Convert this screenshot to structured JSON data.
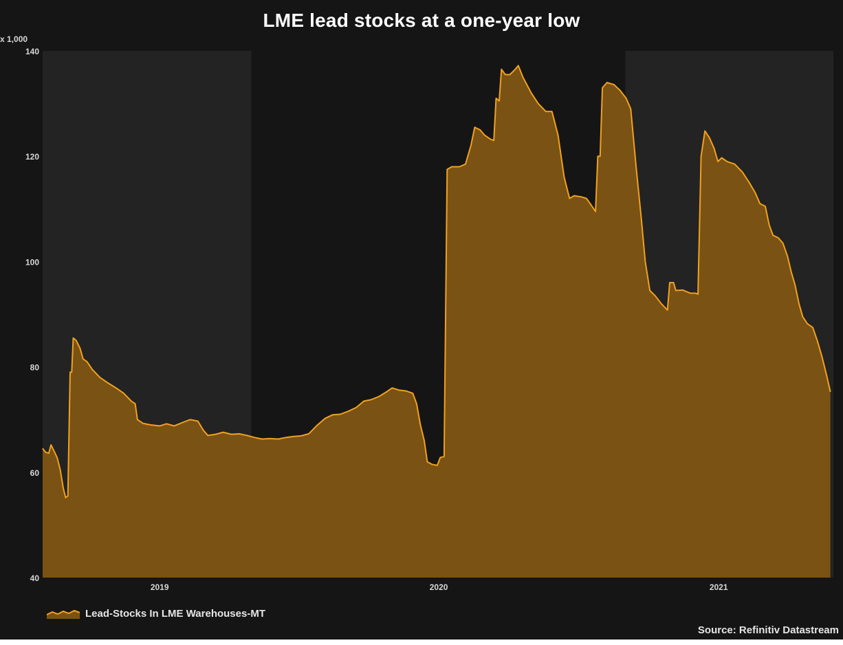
{
  "title": "LME lead stocks at a one-year low",
  "unit_label": "x 1,000",
  "source": "Source: Refinitiv Datastream",
  "colors": {
    "background": "#151515",
    "band": "#232323",
    "area_fill": "#7a5214",
    "line": "#f0a21f",
    "text": "#e6e6e6"
  },
  "chart_data": {
    "type": "area",
    "title": "LME lead stocks at a one-year low",
    "ylim": [
      40,
      140
    ],
    "xlim": [
      "2018-08-01",
      "2021-05-31"
    ],
    "y_ticks": [
      40,
      60,
      80,
      100,
      120,
      140
    ],
    "y_tick_labels": [
      "40",
      "60",
      "80",
      "100",
      "120",
      "140"
    ],
    "x_ticks": [
      "2019-01-01",
      "2020-01-01",
      "2021-01-01"
    ],
    "x_tick_labels": [
      "2019",
      "2020",
      "2021"
    ],
    "shaded_bands": [
      [
        "2018-08-01",
        "2019-05-01"
      ],
      [
        "2020-09-01",
        "2021-05-31"
      ]
    ],
    "grid": false,
    "legend": "bottom-left",
    "series": [
      {
        "name": "Lead-Stocks In LME Warehouses-MT",
        "points": [
          [
            "2018-08-01",
            64.5
          ],
          [
            "2018-08-05",
            63.8
          ],
          [
            "2018-08-09",
            63.6
          ],
          [
            "2018-08-12",
            65.2
          ],
          [
            "2018-08-16",
            64.0
          ],
          [
            "2018-08-20",
            62.8
          ],
          [
            "2018-08-24",
            60.5
          ],
          [
            "2018-08-28",
            57.0
          ],
          [
            "2018-08-31",
            55.2
          ],
          [
            "2018-09-03",
            55.5
          ],
          [
            "2018-09-06",
            79.0
          ],
          [
            "2018-09-08",
            79.0
          ],
          [
            "2018-09-10",
            85.5
          ],
          [
            "2018-09-14",
            85.0
          ],
          [
            "2018-09-19",
            83.5
          ],
          [
            "2018-09-23",
            81.5
          ],
          [
            "2018-09-28",
            81.0
          ],
          [
            "2018-10-05",
            79.5
          ],
          [
            "2018-10-15",
            78.0
          ],
          [
            "2018-10-25",
            77.0
          ],
          [
            "2018-11-05",
            76.0
          ],
          [
            "2018-11-15",
            75.0
          ],
          [
            "2018-11-25",
            73.5
          ],
          [
            "2018-11-30",
            73.0
          ],
          [
            "2018-12-03",
            70.0
          ],
          [
            "2018-12-10",
            69.3
          ],
          [
            "2018-12-20",
            69.0
          ],
          [
            "2019-01-01",
            68.8
          ],
          [
            "2019-01-10",
            69.2
          ],
          [
            "2019-01-20",
            68.8
          ],
          [
            "2019-02-01",
            69.5
          ],
          [
            "2019-02-10",
            70.0
          ],
          [
            "2019-02-20",
            69.7
          ],
          [
            "2019-02-27",
            68.0
          ],
          [
            "2019-03-05",
            67.0
          ],
          [
            "2019-03-15",
            67.2
          ],
          [
            "2019-03-25",
            67.6
          ],
          [
            "2019-04-05",
            67.2
          ],
          [
            "2019-04-15",
            67.3
          ],
          [
            "2019-04-25",
            67.0
          ],
          [
            "2019-05-05",
            66.6
          ],
          [
            "2019-05-15",
            66.3
          ],
          [
            "2019-05-25",
            66.4
          ],
          [
            "2019-06-05",
            66.3
          ],
          [
            "2019-06-15",
            66.6
          ],
          [
            "2019-06-25",
            66.8
          ],
          [
            "2019-07-05",
            66.9
          ],
          [
            "2019-07-15",
            67.3
          ],
          [
            "2019-07-25",
            68.8
          ],
          [
            "2019-08-05",
            70.2
          ],
          [
            "2019-08-15",
            70.9
          ],
          [
            "2019-08-25",
            71.0
          ],
          [
            "2019-09-05",
            71.6
          ],
          [
            "2019-09-15",
            72.3
          ],
          [
            "2019-09-25",
            73.5
          ],
          [
            "2019-10-05",
            73.8
          ],
          [
            "2019-10-15",
            74.4
          ],
          [
            "2019-10-25",
            75.3
          ],
          [
            "2019-11-01",
            76.0
          ],
          [
            "2019-11-10",
            75.6
          ],
          [
            "2019-11-20",
            75.4
          ],
          [
            "2019-11-28",
            75.0
          ],
          [
            "2019-12-03",
            73.0
          ],
          [
            "2019-12-08",
            69.0
          ],
          [
            "2019-12-13",
            66.0
          ],
          [
            "2019-12-17",
            62.0
          ],
          [
            "2019-12-23",
            61.5
          ],
          [
            "2019-12-30",
            61.3
          ],
          [
            "2020-01-03",
            62.8
          ],
          [
            "2020-01-08",
            63.0
          ],
          [
            "2020-01-10",
            90.0
          ],
          [
            "2020-01-12",
            117.5
          ],
          [
            "2020-01-18",
            118.0
          ],
          [
            "2020-01-28",
            118.0
          ],
          [
            "2020-02-05",
            118.5
          ],
          [
            "2020-02-12",
            122.0
          ],
          [
            "2020-02-17",
            125.5
          ],
          [
            "2020-02-24",
            125.0
          ],
          [
            "2020-03-01",
            124.0
          ],
          [
            "2020-03-09",
            123.2
          ],
          [
            "2020-03-13",
            123.0
          ],
          [
            "2020-03-16",
            131.0
          ],
          [
            "2020-03-20",
            130.5
          ],
          [
            "2020-03-23",
            136.5
          ],
          [
            "2020-03-28",
            135.5
          ],
          [
            "2020-04-03",
            135.5
          ],
          [
            "2020-04-10",
            136.5
          ],
          [
            "2020-04-14",
            137.2
          ],
          [
            "2020-04-20",
            135.0
          ],
          [
            "2020-05-01",
            132.0
          ],
          [
            "2020-05-10",
            130.0
          ],
          [
            "2020-05-20",
            128.5
          ],
          [
            "2020-05-28",
            128.5
          ],
          [
            "2020-06-05",
            124.0
          ],
          [
            "2020-06-13",
            116.0
          ],
          [
            "2020-06-20",
            112.0
          ],
          [
            "2020-06-26",
            112.5
          ],
          [
            "2020-07-05",
            112.3
          ],
          [
            "2020-07-12",
            112.0
          ],
          [
            "2020-07-17",
            111.0
          ],
          [
            "2020-07-24",
            109.5
          ],
          [
            "2020-07-27",
            120.0
          ],
          [
            "2020-07-30",
            120.0
          ],
          [
            "2020-08-02",
            133.0
          ],
          [
            "2020-08-08",
            134.0
          ],
          [
            "2020-08-17",
            133.6
          ],
          [
            "2020-08-25",
            132.5
          ],
          [
            "2020-09-02",
            131.0
          ],
          [
            "2020-09-08",
            129.0
          ],
          [
            "2020-09-15",
            118.0
          ],
          [
            "2020-09-22",
            108.0
          ],
          [
            "2020-09-27",
            100.0
          ],
          [
            "2020-10-03",
            94.5
          ],
          [
            "2020-10-10",
            93.5
          ],
          [
            "2020-10-18",
            92.0
          ],
          [
            "2020-10-26",
            90.8
          ],
          [
            "2020-10-29",
            96.0
          ],
          [
            "2020-11-03",
            96.0
          ],
          [
            "2020-11-06",
            94.5
          ],
          [
            "2020-11-15",
            94.6
          ],
          [
            "2020-11-25",
            94.0
          ],
          [
            "2020-12-02",
            94.0
          ],
          [
            "2020-12-05",
            93.8
          ],
          [
            "2020-12-09",
            120.0
          ],
          [
            "2020-12-14",
            124.8
          ],
          [
            "2020-12-20",
            123.5
          ],
          [
            "2020-12-26",
            121.5
          ],
          [
            "2020-12-31",
            119.0
          ],
          [
            "2021-01-05",
            119.7
          ],
          [
            "2021-01-12",
            119.0
          ],
          [
            "2021-01-22",
            118.5
          ],
          [
            "2021-02-01",
            117.0
          ],
          [
            "2021-02-10",
            115.0
          ],
          [
            "2021-02-18",
            113.0
          ],
          [
            "2021-02-24",
            111.0
          ],
          [
            "2021-03-03",
            110.5
          ],
          [
            "2021-03-08",
            107.0
          ],
          [
            "2021-03-13",
            105.0
          ],
          [
            "2021-03-20",
            104.5
          ],
          [
            "2021-03-26",
            103.5
          ],
          [
            "2021-04-01",
            101.0
          ],
          [
            "2021-04-06",
            98.0
          ],
          [
            "2021-04-11",
            95.5
          ],
          [
            "2021-04-16",
            92.0
          ],
          [
            "2021-04-21",
            89.5
          ],
          [
            "2021-04-27",
            88.2
          ],
          [
            "2021-05-04",
            87.5
          ],
          [
            "2021-05-10",
            85.0
          ],
          [
            "2021-05-16",
            82.0
          ],
          [
            "2021-05-22",
            78.5
          ],
          [
            "2021-05-27",
            75.3
          ]
        ]
      }
    ]
  }
}
